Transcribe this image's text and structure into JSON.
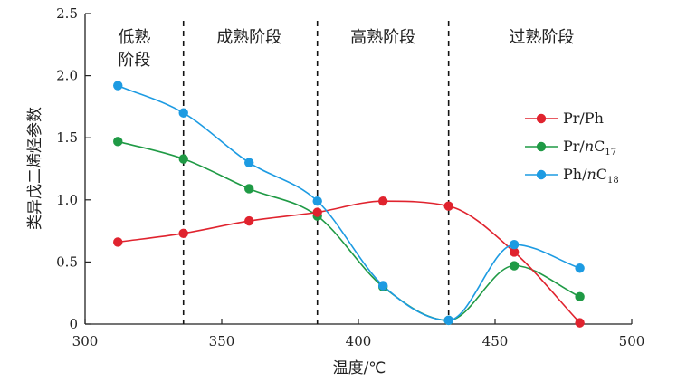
{
  "chart_data": {
    "type": "line",
    "xlabel": "温度/℃",
    "ylabel": "类异戊二烯烃参数",
    "xlim": [
      300,
      500
    ],
    "ylim": [
      0,
      2.5
    ],
    "xticks": [
      300,
      350,
      400,
      450,
      500
    ],
    "yticks": [
      0,
      0.5,
      1.0,
      1.5,
      2.0,
      2.5
    ],
    "xtick_labels": [
      "300",
      "350",
      "400",
      "450",
      "500"
    ],
    "ytick_labels": [
      "0",
      "0.5",
      "1.0",
      "1.5",
      "2.0",
      "2.5"
    ],
    "stage_boundaries": [
      336,
      385,
      433
    ],
    "stages": [
      {
        "lines": [
          "低熟",
          "阶段"
        ],
        "x_center": 318
      },
      {
        "lines": [
          "成熟阶段"
        ],
        "x_center": 360
      },
      {
        "lines": [
          "高熟阶段"
        ],
        "x_center": 409
      },
      {
        "lines": [
          "过熟阶段"
        ],
        "x_center": 467
      }
    ],
    "legend_position": "right",
    "series": [
      {
        "name": "Pr/Ph",
        "legend_main": "Pr/Ph",
        "legend_italic": "",
        "legend_sub": "",
        "color": "#e0232e",
        "x": [
          312,
          336,
          360,
          385,
          409,
          433,
          457,
          481
        ],
        "y": [
          0.66,
          0.73,
          0.83,
          0.9,
          0.99,
          0.95,
          0.58,
          0.01
        ]
      },
      {
        "name": "Pr/nC17",
        "legend_main": "Pr/",
        "legend_italic": "n",
        "legend_sub": "17",
        "color": "#1f9a45",
        "x": [
          312,
          336,
          360,
          385,
          409,
          433,
          457,
          481
        ],
        "y": [
          1.47,
          1.33,
          1.09,
          0.87,
          0.3,
          0.03,
          0.47,
          0.22
        ]
      },
      {
        "name": "Ph/nC18",
        "legend_main": "Ph/",
        "legend_italic": "n",
        "legend_sub": "18",
        "color": "#1d9be2",
        "x": [
          312,
          336,
          360,
          385,
          409,
          433,
          457,
          481
        ],
        "y": [
          1.92,
          1.7,
          1.3,
          0.99,
          0.31,
          0.03,
          0.64,
          0.45
        ]
      }
    ]
  }
}
